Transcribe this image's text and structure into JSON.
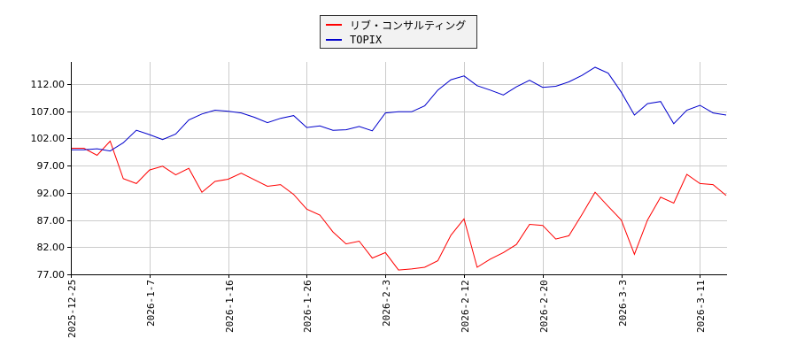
{
  "chart_data": {
    "type": "line",
    "title": "",
    "xlabel": "",
    "ylabel": "",
    "ylim": [
      77.0,
      116.0
    ],
    "yticks": [
      77.0,
      82.0,
      87.0,
      92.0,
      97.0,
      102.0,
      107.0,
      112.0
    ],
    "ytick_labels": [
      "77.00",
      "82.00",
      "87.00",
      "92.00",
      "97.00",
      "102.00",
      "107.00",
      "112.00"
    ],
    "xtick_labels": [
      "2025-12-25",
      "2026-1-7",
      "2026-1-16",
      "2026-1-26",
      "2026-2-3",
      "2026-2-12",
      "2026-2-20",
      "2026-3-3",
      "2026-3-11"
    ],
    "xtick_indices": [
      0,
      6,
      12,
      18,
      24,
      30,
      36,
      42,
      48
    ],
    "grid": true,
    "legend_position": "top-center",
    "series": [
      {
        "name": "リブ・コンサルティング",
        "color": "#ff0000",
        "values": [
          100.2,
          100.2,
          98.9,
          101.5,
          94.6,
          93.7,
          96.2,
          96.9,
          95.3,
          96.5,
          92.1,
          94.1,
          94.5,
          95.6,
          94.4,
          93.2,
          93.5,
          91.7,
          89.0,
          87.9,
          84.8,
          82.6,
          83.1,
          80.0,
          81.0,
          77.8,
          78.0,
          78.3,
          79.5,
          84.2,
          87.2,
          78.3,
          79.8,
          81.0,
          82.5,
          86.2,
          86.0,
          83.5,
          84.1,
          88.0,
          92.1,
          89.5,
          87.0,
          80.7,
          87.0,
          91.2,
          90.1,
          95.4,
          93.7,
          93.5,
          91.5
        ]
      },
      {
        "name": "TOPIX",
        "color": "#0000cc",
        "values": [
          99.9,
          99.9,
          100.1,
          99.7,
          101.2,
          103.5,
          102.7,
          101.8,
          102.8,
          105.4,
          106.5,
          107.2,
          107.0,
          106.7,
          105.9,
          104.9,
          105.7,
          106.2,
          104.0,
          104.3,
          103.5,
          103.6,
          104.2,
          103.4,
          106.7,
          106.9,
          106.9,
          108.0,
          110.9,
          112.8,
          113.5,
          111.7,
          110.9,
          110.0,
          111.5,
          112.7,
          111.4,
          111.6,
          112.4,
          113.6,
          115.1,
          114.0,
          110.5,
          106.3,
          108.4,
          108.8,
          104.7,
          107.2,
          108.1,
          106.7,
          106.3
        ]
      }
    ]
  },
  "legend": {
    "items": [
      {
        "label": "リブ・コンサルティング",
        "color": "#ff0000"
      },
      {
        "label": "TOPIX",
        "color": "#0000cc"
      }
    ]
  }
}
